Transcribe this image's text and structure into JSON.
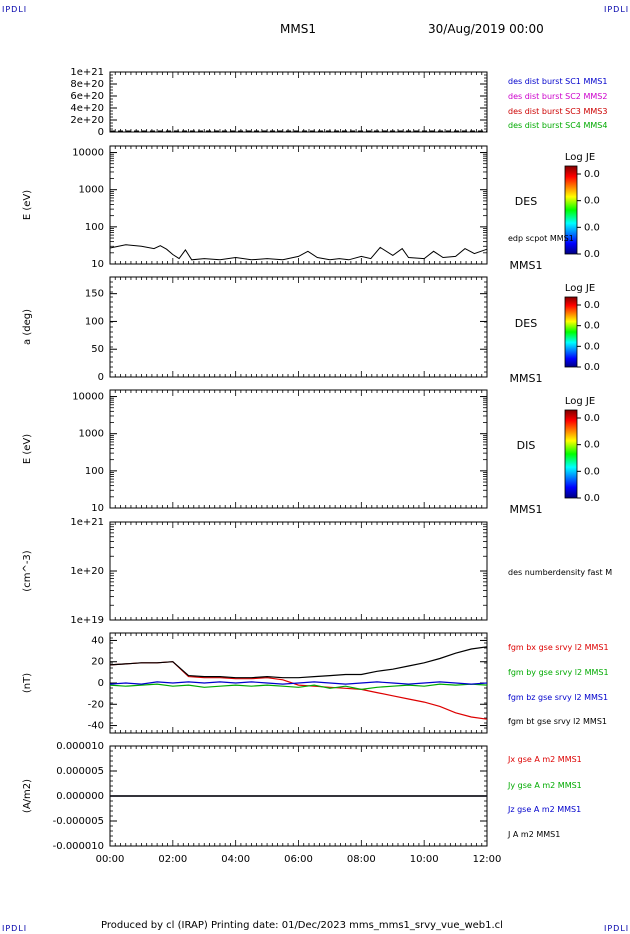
{
  "header": {
    "corner_label": "IPDLI",
    "mission": "MMS1",
    "datetime": "30/Aug/2019 00:00"
  },
  "footer": {
    "text": "Produced by cl (IRAP)   Printing date: 01/Dec/2023   mms_mms1_srvy_vue_web1.cl"
  },
  "chart_data": [
    {
      "type": "line",
      "id": "panel-1",
      "ylabel": "",
      "yticks": [
        "0",
        "2e+20",
        "4e+20",
        "6e+20",
        "8e+20",
        "1e+21"
      ],
      "ylim": [
        0,
        1e+21
      ],
      "series": [
        {
          "name": "des dist burst SC1 MMS1",
          "color": "#0000cc",
          "values": []
        },
        {
          "name": "des dist burst SC2 MMS2",
          "color": "#cc00cc",
          "values": []
        },
        {
          "name": "des dist burst SC3 MMS3",
          "color": "#cc0000",
          "values": []
        },
        {
          "name": "des dist burst SC4 MMS4",
          "color": "#00aa00",
          "values": []
        }
      ]
    },
    {
      "type": "heatmap",
      "id": "panel-2",
      "ylabel": "E (eV)",
      "yscale": "log",
      "yticks": [
        "10",
        "100",
        "1000",
        "10000"
      ],
      "ylim": [
        10,
        15000
      ],
      "right_label": "DES",
      "sc_label": "MMS1",
      "colorbar": {
        "title": "Log JE",
        "ticks": [
          "0.0",
          "0.0",
          "0.0",
          "0.0"
        ]
      },
      "overlay": {
        "name": "edp scpot MMS1",
        "color": "#000000",
        "x": [
          0,
          0.5,
          1.0,
          1.4,
          1.6,
          1.8,
          2.0,
          2.2,
          2.4,
          2.6,
          3.0,
          3.5,
          4.0,
          4.5,
          5.0,
          5.5,
          6.0,
          6.3,
          6.6,
          7.0,
          7.3,
          7.6,
          8.0,
          8.3,
          8.6,
          9.0,
          9.3,
          9.5,
          10.0,
          10.3,
          10.6,
          11.0,
          11.3,
          11.6,
          12.0
        ],
        "y": [
          27,
          33,
          30,
          26,
          31,
          25,
          18,
          14,
          24,
          13,
          14,
          13,
          15,
          13,
          14,
          13,
          16,
          22,
          15,
          13,
          14,
          13,
          16,
          14,
          28,
          17,
          26,
          15,
          14,
          22,
          15,
          16,
          26,
          19,
          25
        ]
      }
    },
    {
      "type": "heatmap",
      "id": "panel-3",
      "ylabel": "a (deg)",
      "yticks": [
        "0",
        "50",
        "100",
        "150"
      ],
      "ylim": [
        0,
        180
      ],
      "right_label": "DES",
      "sc_label": "MMS1",
      "colorbar": {
        "title": "Log JE",
        "ticks": [
          "0.0",
          "0.0",
          "0.0",
          "0.0"
        ]
      }
    },
    {
      "type": "heatmap",
      "id": "panel-4",
      "ylabel": "E (eV)",
      "yscale": "log",
      "yticks": [
        "10",
        "100",
        "1000",
        "10000"
      ],
      "ylim": [
        10,
        15000
      ],
      "right_label": "DIS",
      "sc_label": "MMS1",
      "colorbar": {
        "title": "Log JE",
        "ticks": [
          "0.0",
          "0.0",
          "0.0",
          "0.0"
        ]
      }
    },
    {
      "type": "line",
      "id": "panel-5",
      "ylabel": "(cm^-3)",
      "yscale": "log",
      "yticks": [
        "1e+19",
        "1e+20",
        "1e+21"
      ],
      "ylim": [
        1e+19,
        1e+21
      ],
      "series": [
        {
          "name": "des numberdensity fast M",
          "color": "#000000",
          "values": []
        }
      ]
    },
    {
      "type": "line",
      "id": "panel-6",
      "ylabel": "(nT)",
      "yticks": [
        "-40",
        "-20",
        "0",
        "20",
        "40"
      ],
      "ylim": [
        -47,
        47
      ],
      "x": [
        0,
        0.5,
        1.0,
        1.5,
        2.0,
        2.5,
        3.0,
        3.5,
        4.0,
        4.5,
        5.0,
        5.5,
        6.0,
        6.5,
        7.0,
        7.5,
        8.0,
        8.5,
        9.0,
        9.5,
        10.0,
        10.5,
        11.0,
        11.5,
        12.0
      ],
      "series": [
        {
          "name": "fgm bx gse srvy l2 MMS1",
          "color": "#dd0000",
          "values": [
            17,
            18,
            19,
            19,
            20,
            6,
            5,
            5,
            4,
            4,
            5,
            3,
            -2,
            -3,
            -4,
            -5,
            -6,
            -9,
            -12,
            -15,
            -18,
            -22,
            -28,
            -32,
            -34
          ]
        },
        {
          "name": "fgm by gse srvy l2 MMS1",
          "color": "#00aa00",
          "values": [
            -2,
            -3,
            -2,
            -1,
            -3,
            -2,
            -4,
            -3,
            -2,
            -3,
            -2,
            -3,
            -4,
            -2,
            -5,
            -3,
            -6,
            -4,
            -3,
            -2,
            -3,
            -1,
            -2,
            -1,
            -2
          ]
        },
        {
          "name": "fgm bz gse srvy l2 MMS1",
          "color": "#0000cc",
          "values": [
            -1,
            0,
            -1,
            1,
            0,
            1,
            0,
            1,
            0,
            1,
            0,
            -1,
            0,
            1,
            0,
            -1,
            0,
            1,
            0,
            -1,
            0,
            1,
            0,
            -1,
            0
          ]
        },
        {
          "name": "fgm bt gse srvy l2 MMS1",
          "color": "#000000",
          "values": [
            17,
            18,
            19,
            19,
            20,
            7,
            6,
            6,
            5,
            5,
            6,
            5,
            5,
            6,
            7,
            8,
            8,
            11,
            13,
            16,
            19,
            23,
            28,
            32,
            34
          ]
        }
      ]
    },
    {
      "type": "line",
      "id": "panel-7",
      "ylabel": "(A/m2)",
      "yticks": [
        "-0.000010",
        "-0.000005",
        "0.000000",
        "0.000005",
        "0.000010"
      ],
      "ylim": [
        -1e-05,
        1e-05
      ],
      "x": [
        0,
        12
      ],
      "xlabel": "",
      "xticks": [
        "00:00",
        "02:00",
        "04:00",
        "06:00",
        "08:00",
        "10:00",
        "12:00"
      ],
      "series": [
        {
          "name": "Jx gse A m2 MMS1",
          "color": "#dd0000",
          "values": [
            0,
            0
          ]
        },
        {
          "name": "Jy gse A m2 MMS1",
          "color": "#00aa00",
          "values": [
            0,
            0
          ]
        },
        {
          "name": "Jz gse A m2 MMS1",
          "color": "#0000cc",
          "values": [
            0,
            0
          ]
        },
        {
          "name": "J A m2 MMS1",
          "color": "#000000",
          "values": [
            0,
            0
          ]
        }
      ]
    }
  ]
}
